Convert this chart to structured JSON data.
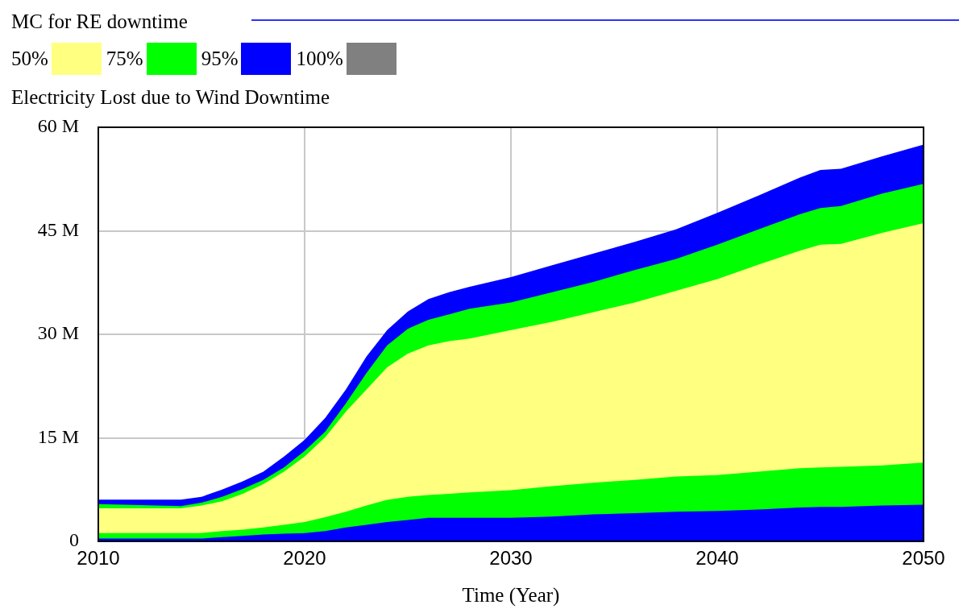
{
  "chart_data": {
    "type": "area",
    "title": "MC for RE downtime",
    "ylabel": "Electricity Lost due to Wind Downtime",
    "xlabel": "Time (Year)",
    "x": [
      2010,
      2014,
      2015,
      2016,
      2017,
      2018,
      2019,
      2020,
      2021,
      2022,
      2023,
      2024,
      2025,
      2026,
      2027,
      2028,
      2030,
      2032,
      2034,
      2036,
      2038,
      2040,
      2042,
      2044,
      2045,
      2046,
      2048,
      2050
    ],
    "series": [
      {
        "name": "50%",
        "color": "#ffff80",
        "values": [
          null,
          null,
          null,
          null,
          null,
          null,
          null,
          null,
          null,
          null,
          null,
          null,
          null,
          null,
          null,
          null,
          null,
          null,
          null,
          null,
          null,
          null,
          null,
          null,
          null,
          null,
          null,
          null
        ],
        "lower": [
          1200000,
          1200000,
          1200000,
          1500000,
          1700000,
          2000000,
          2400000,
          2800000,
          3500000,
          4300000,
          5200000,
          6000000,
          6450000,
          6700000,
          6900000,
          7100000,
          7400000,
          8000000,
          8500000,
          8900000,
          9400000,
          9600000,
          10100000,
          10600000,
          10700000,
          10800000,
          11000000,
          11400000
        ],
        "upper": [
          4800000,
          4800000,
          5200000,
          5800000,
          6900000,
          8300000,
          10100000,
          12300000,
          15100000,
          18800000,
          22000000,
          25200000,
          27200000,
          28400000,
          29000000,
          29400000,
          30600000,
          31800000,
          33200000,
          34600000,
          36300000,
          38000000,
          40100000,
          42100000,
          43000000,
          43100000,
          44700000,
          46100000
        ]
      },
      {
        "name": "75%",
        "color": "#00ff00",
        "values": [
          null,
          null,
          null,
          null,
          null,
          null,
          null,
          null,
          null,
          null,
          null,
          null,
          null,
          null,
          null,
          null,
          null,
          null,
          null,
          null,
          null,
          null,
          null,
          null,
          null,
          null,
          null,
          null
        ],
        "lower": [
          400000,
          400000,
          400000,
          600000,
          800000,
          1000000,
          1100000,
          1200000,
          1500000,
          2000000,
          2400000,
          2800000,
          3100000,
          3400000,
          3400000,
          3400000,
          3400000,
          3600000,
          3900000,
          4100000,
          4300000,
          4400000,
          4600000,
          4900000,
          5000000,
          5000000,
          5200000,
          5300000
        ],
        "upper": [
          5400000,
          5100000,
          5600000,
          6450000,
          7600000,
          8900000,
          10700000,
          13100000,
          15900000,
          20000000,
          24400000,
          28400000,
          30800000,
          32100000,
          32900000,
          33700000,
          34600000,
          36100000,
          37600000,
          39300000,
          40900000,
          43000000,
          45200000,
          47400000,
          48300000,
          48600000,
          50400000,
          51800000
        ]
      },
      {
        "name": "95%",
        "color": "#0000ff",
        "values": [
          null,
          null,
          null,
          null,
          null,
          null,
          null,
          null,
          null,
          null,
          null,
          null,
          null,
          null,
          null,
          null,
          null,
          null,
          null,
          null,
          null,
          null,
          null,
          null,
          null,
          null,
          null,
          null
        ],
        "lower": [
          0,
          0,
          0,
          0,
          0,
          0,
          0,
          0,
          0,
          0,
          0,
          0,
          0,
          0,
          0,
          0,
          0,
          0,
          0,
          0,
          0,
          0,
          0,
          0,
          0,
          0,
          0,
          0
        ],
        "upper": [
          6050000,
          6050000,
          6450000,
          7500000,
          8700000,
          10100000,
          12300000,
          14700000,
          17900000,
          22000000,
          26800000,
          30600000,
          33300000,
          35100000,
          36100000,
          36900000,
          38300000,
          40000000,
          41700000,
          43400000,
          45200000,
          47600000,
          50100000,
          52700000,
          53800000,
          54000000,
          55800000,
          57500000
        ]
      },
      {
        "name": "100%",
        "color": "#808080",
        "values": [
          null,
          null,
          null,
          null,
          null,
          null,
          null,
          null,
          null,
          null,
          null,
          null,
          null,
          null,
          null,
          null,
          null,
          null,
          null,
          null,
          null,
          null,
          null,
          null,
          null,
          null,
          null,
          null
        ]
      }
    ],
    "xlim": [
      2010,
      2050
    ],
    "xticks": [
      2010,
      2020,
      2030,
      2040,
      2050
    ],
    "ylim": [
      0,
      60000000
    ],
    "yticks": [
      {
        "value": 0,
        "label": "0"
      },
      {
        "value": 15000000,
        "label": "15 M"
      },
      {
        "value": 30000000,
        "label": "30 M"
      },
      {
        "value": 45000000,
        "label": "45 M"
      },
      {
        "value": 60000000,
        "label": "60 M"
      }
    ],
    "grid": true,
    "legend": "top left"
  }
}
